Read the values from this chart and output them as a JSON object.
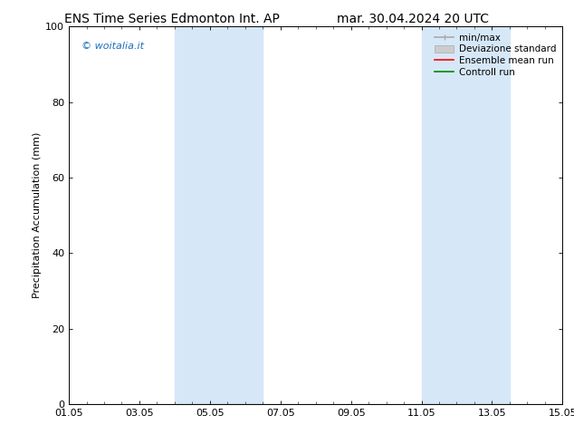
{
  "title_left": "ENS Time Series Edmonton Int. AP",
  "title_right": "mar. 30.04.2024 20 UTC",
  "ylabel": "Precipitation Accumulation (mm)",
  "watermark": "© woitalia.it",
  "watermark_color": "#1a6fba",
  "ylim": [
    0,
    100
  ],
  "yticks": [
    0,
    20,
    40,
    60,
    80,
    100
  ],
  "xlim": [
    0,
    14
  ],
  "xtick_labels": [
    "01.05",
    "03.05",
    "05.05",
    "07.05",
    "09.05",
    "11.05",
    "13.05",
    "15.05"
  ],
  "xtick_positions_days": [
    0,
    2,
    4,
    6,
    8,
    10,
    12,
    14
  ],
  "shaded_regions": [
    {
      "start_day": 3.0,
      "end_day": 5.5
    },
    {
      "start_day": 10.0,
      "end_day": 12.5
    }
  ],
  "shade_color": "#d6e8f8",
  "shade_alpha": 1.0,
  "background_color": "#ffffff",
  "legend_labels": [
    "min/max",
    "Deviazione standard",
    "Ensemble mean run",
    "Controll run"
  ],
  "legend_colors": [
    "#aaaaaa",
    "#cccccc",
    "#ff0000",
    "#008800"
  ],
  "title_fontsize": 10,
  "axis_fontsize": 8,
  "tick_fontsize": 8,
  "legend_fontsize": 7.5
}
